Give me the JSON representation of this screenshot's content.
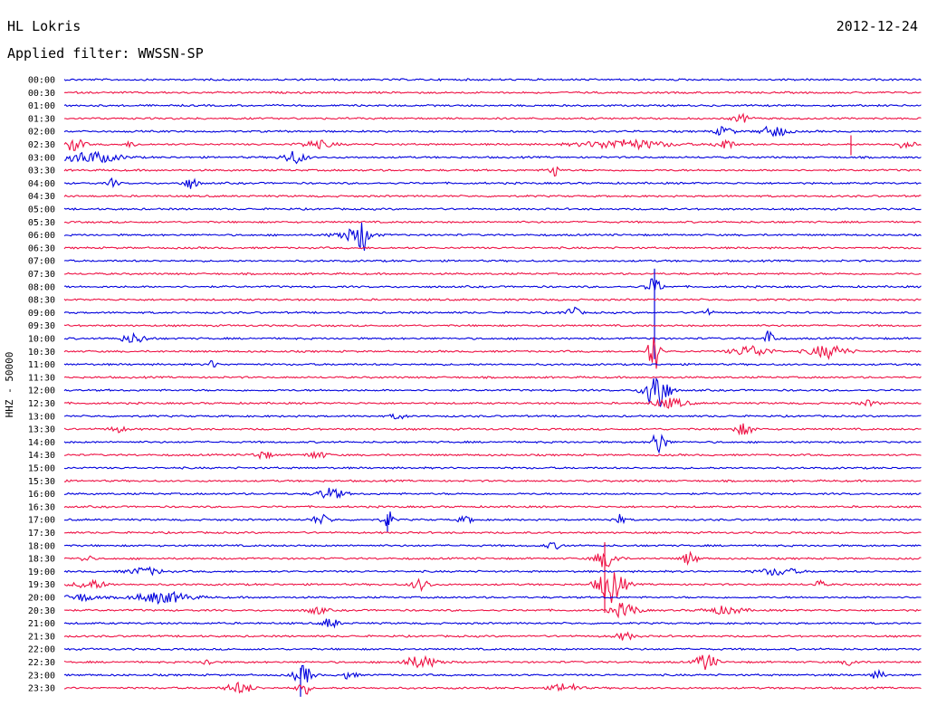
{
  "header": {
    "station": "HL Lokris",
    "date": "2012-12-24",
    "filter_label": "Applied filter: WWSSN-SP"
  },
  "chart_data": {
    "type": "line",
    "title": "HL Lokris",
    "ylabel": "HHZ - 50000",
    "colors": {
      "odd_trace": "#0000dd",
      "even_trace": "#ee1144"
    },
    "row_labels": [
      "00:00",
      "00:30",
      "01:00",
      "01:30",
      "02:00",
      "02:30",
      "03:00",
      "03:30",
      "04:00",
      "04:30",
      "05:00",
      "05:30",
      "06:00",
      "06:30",
      "07:00",
      "07:30",
      "08:00",
      "08:30",
      "09:00",
      "09:30",
      "10:00",
      "10:30",
      "11:00",
      "11:30",
      "12:00",
      "12:30",
      "13:00",
      "13:30",
      "14:00",
      "14:30",
      "15:00",
      "15:30",
      "16:00",
      "16:30",
      "17:00",
      "17:30",
      "18:00",
      "18:30",
      "19:00",
      "19:30",
      "20:00",
      "20:30",
      "21:00",
      "21:30",
      "22:00",
      "22:30",
      "23:00",
      "23:30"
    ]
  }
}
